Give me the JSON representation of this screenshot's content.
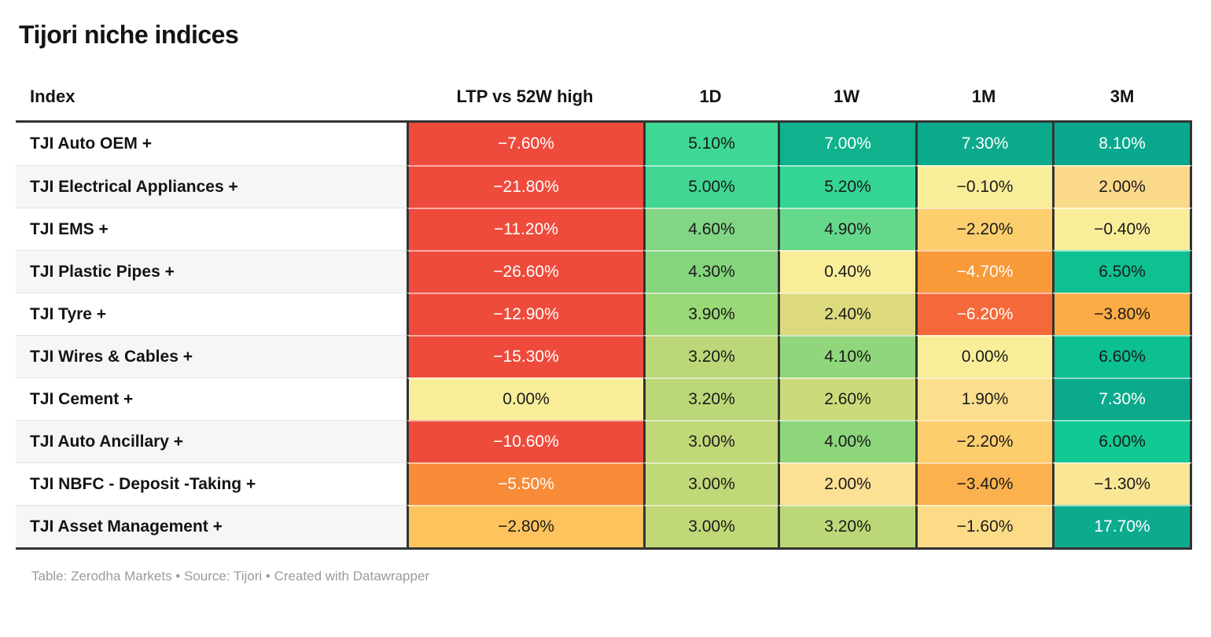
{
  "title": "Tijori niche indices",
  "footer": "Table: Zerodha Markets • Source: Tijori • Created with Datawrapper",
  "theme": {
    "text_dark": "#1a1a1a",
    "text_light": "#ffffff",
    "border_dark": "#333333",
    "row_stripe": "#f6f6f6",
    "negative_red": "#ee4b3c",
    "positive_teal": "#0caa8c",
    "neutral_yellow": "#f8ee9a"
  },
  "chart_data": {
    "type": "table",
    "title": "Tijori niche indices",
    "columns": [
      "Index",
      "LTP vs 52W high",
      "1D",
      "1W",
      "1M",
      "3M"
    ],
    "column_keys": [
      "ltp-vs-52w-high",
      "1d",
      "1w",
      "1m",
      "3m"
    ],
    "rows": [
      {
        "index": "TJI Auto OEM +",
        "cells": [
          {
            "label": "−7.60%",
            "value": -7.6,
            "bg": "#ee4b3c",
            "fg": "#ffffff"
          },
          {
            "label": "5.10%",
            "value": 5.1,
            "bg": "#3ed794",
            "fg": "#1a1a1a"
          },
          {
            "label": "7.00%",
            "value": 7.0,
            "bg": "#0fb28d",
            "fg": "#ffffff"
          },
          {
            "label": "7.30%",
            "value": 7.3,
            "bg": "#0caa8c",
            "fg": "#ffffff"
          },
          {
            "label": "8.10%",
            "value": 8.1,
            "bg": "#09a88e",
            "fg": "#ffffff"
          }
        ]
      },
      {
        "index": "TJI Electrical Appliances +",
        "cells": [
          {
            "label": "−21.80%",
            "value": -21.8,
            "bg": "#ee4b3c",
            "fg": "#ffffff"
          },
          {
            "label": "5.00%",
            "value": 5.0,
            "bg": "#41d793",
            "fg": "#1a1a1a"
          },
          {
            "label": "5.20%",
            "value": 5.2,
            "bg": "#35d595",
            "fg": "#1a1a1a"
          },
          {
            "label": "−0.10%",
            "value": -0.1,
            "bg": "#f8ee9a",
            "fg": "#1a1a1a"
          },
          {
            "label": "2.00%",
            "value": 2.0,
            "bg": "#fbd98a",
            "fg": "#1a1a1a"
          }
        ]
      },
      {
        "index": "TJI EMS +",
        "cells": [
          {
            "label": "−11.20%",
            "value": -11.2,
            "bg": "#ee4b3c",
            "fg": "#ffffff"
          },
          {
            "label": "4.60%",
            "value": 4.6,
            "bg": "#82d584",
            "fg": "#1a1a1a"
          },
          {
            "label": "4.90%",
            "value": 4.9,
            "bg": "#66d88c",
            "fg": "#1a1a1a"
          },
          {
            "label": "−2.20%",
            "value": -2.2,
            "bg": "#fcce6e",
            "fg": "#1a1a1a"
          },
          {
            "label": "−0.40%",
            "value": -0.4,
            "bg": "#f8ee9a",
            "fg": "#1a1a1a"
          }
        ]
      },
      {
        "index": "TJI Plastic Pipes +",
        "cells": [
          {
            "label": "−26.60%",
            "value": -26.6,
            "bg": "#ee4b3c",
            "fg": "#ffffff"
          },
          {
            "label": "4.30%",
            "value": 4.3,
            "bg": "#85d57f",
            "fg": "#1a1a1a"
          },
          {
            "label": "0.40%",
            "value": 0.4,
            "bg": "#f8ee9a",
            "fg": "#1a1a1a"
          },
          {
            "label": "−4.70%",
            "value": -4.7,
            "bg": "#f89a38",
            "fg": "#ffffff"
          },
          {
            "label": "6.50%",
            "value": 6.5,
            "bg": "#0dc290",
            "fg": "#1a1a1a"
          }
        ]
      },
      {
        "index": "TJI Tyre +",
        "cells": [
          {
            "label": "−12.90%",
            "value": -12.9,
            "bg": "#ee4b3c",
            "fg": "#ffffff"
          },
          {
            "label": "3.90%",
            "value": 3.9,
            "bg": "#9bd877",
            "fg": "#1a1a1a"
          },
          {
            "label": "2.40%",
            "value": 2.4,
            "bg": "#dcda7c",
            "fg": "#1a1a1a"
          },
          {
            "label": "−6.20%",
            "value": -6.2,
            "bg": "#f4683a",
            "fg": "#ffffff"
          },
          {
            "label": "−3.80%",
            "value": -3.8,
            "bg": "#fcac44",
            "fg": "#1a1a1a"
          }
        ]
      },
      {
        "index": "TJI Wires & Cables +",
        "cells": [
          {
            "label": "−15.30%",
            "value": -15.3,
            "bg": "#ee4b3c",
            "fg": "#ffffff"
          },
          {
            "label": "3.20%",
            "value": 3.2,
            "bg": "#bbd778",
            "fg": "#1a1a1a"
          },
          {
            "label": "4.10%",
            "value": 4.1,
            "bg": "#90d67c",
            "fg": "#1a1a1a"
          },
          {
            "label": "0.00%",
            "value": 0.0,
            "bg": "#f8ee9a",
            "fg": "#1a1a1a"
          },
          {
            "label": "6.60%",
            "value": 6.6,
            "bg": "#0cc091",
            "fg": "#1a1a1a"
          }
        ]
      },
      {
        "index": "TJI Cement +",
        "cells": [
          {
            "label": "0.00%",
            "value": 0.0,
            "bg": "#f8ee9a",
            "fg": "#1a1a1a"
          },
          {
            "label": "3.20%",
            "value": 3.2,
            "bg": "#bbd778",
            "fg": "#1a1a1a"
          },
          {
            "label": "2.60%",
            "value": 2.6,
            "bg": "#cdda7a",
            "fg": "#1a1a1a"
          },
          {
            "label": "1.90%",
            "value": 1.9,
            "bg": "#fbdf8e",
            "fg": "#1a1a1a"
          },
          {
            "label": "7.30%",
            "value": 7.3,
            "bg": "#0caa8c",
            "fg": "#ffffff"
          }
        ]
      },
      {
        "index": "TJI Auto Ancillary +",
        "cells": [
          {
            "label": "−10.60%",
            "value": -10.6,
            "bg": "#ee4b3c",
            "fg": "#ffffff"
          },
          {
            "label": "3.00%",
            "value": 3.0,
            "bg": "#c0d877",
            "fg": "#1a1a1a"
          },
          {
            "label": "4.00%",
            "value": 4.0,
            "bg": "#8dd67c",
            "fg": "#1a1a1a"
          },
          {
            "label": "−2.20%",
            "value": -2.2,
            "bg": "#fcce6e",
            "fg": "#1a1a1a"
          },
          {
            "label": "6.00%",
            "value": 6.0,
            "bg": "#10c993",
            "fg": "#1a1a1a"
          }
        ]
      },
      {
        "index": "TJI NBFC - Deposit -Taking +",
        "cells": [
          {
            "label": "−5.50%",
            "value": -5.5,
            "bg": "#f78b38",
            "fg": "#ffffff"
          },
          {
            "label": "3.00%",
            "value": 3.0,
            "bg": "#c0d877",
            "fg": "#1a1a1a"
          },
          {
            "label": "2.00%",
            "value": 2.0,
            "bg": "#fce094",
            "fg": "#1a1a1a"
          },
          {
            "label": "−3.40%",
            "value": -3.4,
            "bg": "#fbb14d",
            "fg": "#1a1a1a"
          },
          {
            "label": "−1.30%",
            "value": -1.3,
            "bg": "#f9e795",
            "fg": "#1a1a1a"
          }
        ]
      },
      {
        "index": "TJI Asset Management +",
        "cells": [
          {
            "label": "−2.80%",
            "value": -2.8,
            "bg": "#ffc35e",
            "fg": "#1a1a1a"
          },
          {
            "label": "3.00%",
            "value": 3.0,
            "bg": "#c0d877",
            "fg": "#1a1a1a"
          },
          {
            "label": "3.20%",
            "value": 3.2,
            "bg": "#bbd778",
            "fg": "#1a1a1a"
          },
          {
            "label": "−1.60%",
            "value": -1.6,
            "bg": "#fbdb85",
            "fg": "#1a1a1a"
          },
          {
            "label": "17.70%",
            "value": 17.7,
            "bg": "#0cab8e",
            "fg": "#ffffff"
          }
        ]
      }
    ]
  }
}
